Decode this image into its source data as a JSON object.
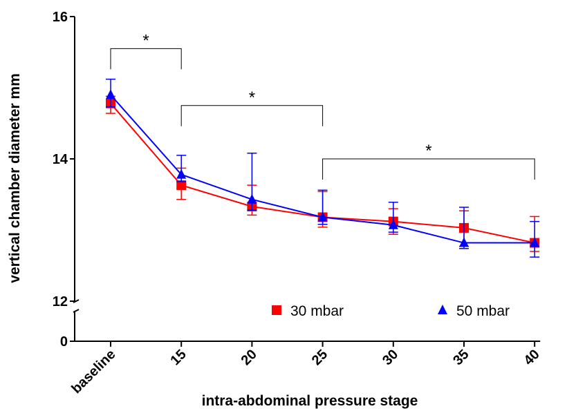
{
  "chart_data": {
    "type": "line",
    "title": "",
    "xlabel": "intra-abdominal pressure stage",
    "ylabel": "vertical chamber diameter mm",
    "categories": [
      "baseline",
      "15",
      "20",
      "25",
      "30",
      "35",
      "40"
    ],
    "y_ticks": [
      "0",
      "12",
      "14",
      "16"
    ],
    "y_axis_break": true,
    "ylim_upper": [
      12,
      16
    ],
    "ylim_lower": [
      0,
      12
    ],
    "grid": false,
    "legend_position": "bottom",
    "series": [
      {
        "name": "30 mbar",
        "color": "#ff0000",
        "marker": "square-icon",
        "values": [
          14.78,
          13.63,
          13.33,
          13.18,
          13.12,
          13.03,
          12.82
        ],
        "err_low": [
          0.14,
          0.2,
          0.12,
          0.14,
          0.18,
          0.26,
          0.12
        ],
        "err_high": [
          0.1,
          0.24,
          0.3,
          0.36,
          0.18,
          0.24,
          0.37
        ]
      },
      {
        "name": "50 mbar",
        "color": "#0000ff",
        "marker": "triangle-icon",
        "values": [
          14.9,
          13.78,
          13.43,
          13.18,
          13.07,
          12.82,
          12.82
        ],
        "err_low": [
          0.17,
          0.1,
          0.15,
          0.1,
          0.1,
          0.08,
          0.2
        ],
        "err_high": [
          0.22,
          0.27,
          0.65,
          0.38,
          0.32,
          0.5,
          0.3
        ]
      }
    ],
    "annotations": [
      {
        "text": "*",
        "from": "baseline",
        "to": "15",
        "y": 15.55
      },
      {
        "text": "*",
        "from": "15",
        "to": "25",
        "y": 14.75
      },
      {
        "text": "*",
        "from": "25",
        "to": "40",
        "y": 14.0
      }
    ]
  }
}
